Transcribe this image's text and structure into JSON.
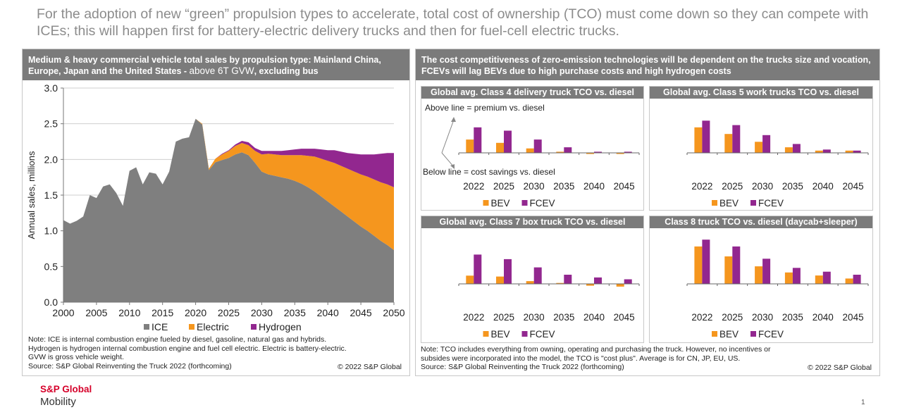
{
  "headline": "For the adoption of new “green” propulsion types to accelerate, total cost of ownership (TCO) must come down so they can compete with ICEs; this will happen first for battery-electric delivery trucks and then for fuel-cell electric trucks.",
  "left_panel": {
    "title_bold": "Medium & heavy commercial vehicle total sales by propulsion type: Mainland China, Europe, Japan and the United States - ",
    "title_light": "above 6T GVW",
    "title_tail": ", excluding bus",
    "note": [
      "Note: ICE is internal combustion engine fueled by diesel, gasoline, natural gas and hybrids.",
      "Hydrogen is hydrogen internal combustion engine and fuel cell electric. Electric is battery-electric.",
      "GVW is gross vehicle weight.",
      "Source: S&P Global Reinventing the Truck 2022 (forthcoming)"
    ],
    "copyright": "© 2022 S&P Global"
  },
  "right_panel": {
    "title": "The cost competitiveness of zero-emission technologies will be dependent on the trucks size and vocation, FCEVs will lag BEVs due to high purchase costs and high hydrogen costs",
    "note": [
      "Note: TCO includes everything from owning, operating and purchasing the truck. However, no incentives or",
      "subsides were incorporated into the model, the TCO is \"cost plus\". Average is for CN, JP, EU, US.",
      "Source: S&P Global Reinventing the Truck 2022 (forthcoming)"
    ],
    "copyright": "© 2022 S&P Global",
    "annotations": {
      "above": "Above line = premium vs. diesel",
      "below": "Below line = cost savings vs. diesel"
    }
  },
  "chart_data": [
    {
      "type": "area",
      "stacked": true,
      "title": "Medium & heavy commercial vehicle total sales by propulsion type",
      "ylabel": "Annual sales, millions",
      "xlabel": "",
      "xlim": [
        2000,
        2050
      ],
      "ylim": [
        0,
        3.0
      ],
      "yticks": [
        "0.0",
        "0.5",
        "1.0",
        "1.5",
        "2.0",
        "2.5",
        "3.0"
      ],
      "xticks": [
        "2000",
        "2005",
        "2010",
        "2015",
        "2020",
        "2025",
        "2030",
        "2035",
        "2040",
        "2045",
        "2050"
      ],
      "grid": true,
      "legend": "bottom",
      "colors": {
        "ICE": "#7f7f7f",
        "Electric": "#f5961e",
        "Hydrogen": "#92278f"
      },
      "x": [
        2000,
        2001,
        2002,
        2003,
        2004,
        2005,
        2006,
        2007,
        2008,
        2009,
        2010,
        2011,
        2012,
        2013,
        2014,
        2015,
        2016,
        2017,
        2018,
        2019,
        2020,
        2021,
        2022,
        2023,
        2024,
        2025,
        2026,
        2027,
        2028,
        2029,
        2030,
        2031,
        2032,
        2033,
        2034,
        2035,
        2036,
        2037,
        2038,
        2039,
        2040,
        2041,
        2042,
        2043,
        2044,
        2045,
        2046,
        2047,
        2048,
        2049,
        2050
      ],
      "series": [
        {
          "name": "ICE",
          "values": [
            1.15,
            1.1,
            1.14,
            1.2,
            1.5,
            1.46,
            1.62,
            1.65,
            1.53,
            1.35,
            1.84,
            1.89,
            1.65,
            1.82,
            1.8,
            1.65,
            1.83,
            2.25,
            2.29,
            2.31,
            2.57,
            2.49,
            1.85,
            1.96,
            1.99,
            2.02,
            2.07,
            2.1,
            2.06,
            1.95,
            1.83,
            1.79,
            1.77,
            1.75,
            1.73,
            1.7,
            1.66,
            1.61,
            1.55,
            1.48,
            1.41,
            1.34,
            1.27,
            1.2,
            1.13,
            1.06,
            1.0,
            0.93,
            0.86,
            0.8,
            0.73
          ]
        },
        {
          "name": "Electric",
          "values": [
            0,
            0,
            0,
            0,
            0,
            0,
            0,
            0,
            0,
            0,
            0,
            0,
            0,
            0,
            0,
            0,
            0,
            0,
            0,
            0,
            0.0,
            0.01,
            0.02,
            0.05,
            0.08,
            0.1,
            0.12,
            0.13,
            0.14,
            0.17,
            0.24,
            0.29,
            0.3,
            0.31,
            0.33,
            0.36,
            0.4,
            0.44,
            0.49,
            0.53,
            0.57,
            0.61,
            0.64,
            0.67,
            0.7,
            0.73,
            0.76,
            0.79,
            0.82,
            0.85,
            0.88
          ]
        },
        {
          "name": "Hydrogen",
          "values": [
            0,
            0,
            0,
            0,
            0,
            0,
            0,
            0,
            0,
            0,
            0,
            0,
            0,
            0,
            0,
            0,
            0,
            0,
            0,
            0,
            0,
            0,
            0,
            0,
            0.01,
            0.01,
            0.02,
            0.03,
            0.04,
            0.04,
            0.05,
            0.04,
            0.05,
            0.06,
            0.07,
            0.08,
            0.09,
            0.1,
            0.11,
            0.13,
            0.15,
            0.18,
            0.2,
            0.22,
            0.25,
            0.28,
            0.31,
            0.35,
            0.4,
            0.44,
            0.48
          ]
        }
      ]
    },
    {
      "type": "bar",
      "title": "Global avg. Class 4 delivery truck TCO vs. diesel",
      "categories": [
        "2022",
        "2025",
        "2030",
        "2035",
        "2040",
        "2045"
      ],
      "ylim": [
        -1,
        4
      ],
      "series": [
        {
          "name": "BEV",
          "values": [
            1.2,
            0.9,
            0.4,
            0.1,
            -0.1,
            -0.1
          ]
        },
        {
          "name": "FCEV",
          "values": [
            2.3,
            2.0,
            1.2,
            0.5,
            0.1,
            0.1
          ]
        }
      ]
    },
    {
      "type": "bar",
      "title": "Global avg. Class 5 work trucks TCO vs. diesel",
      "categories": [
        "2022",
        "2025",
        "2030",
        "2035",
        "2040",
        "2045"
      ],
      "ylim": [
        -1,
        4
      ],
      "series": [
        {
          "name": "BEV",
          "values": [
            2.3,
            1.7,
            1.0,
            0.5,
            0.2,
            0.2
          ]
        },
        {
          "name": "FCEV",
          "values": [
            2.9,
            2.5,
            1.6,
            0.8,
            0.3,
            0.2
          ]
        }
      ]
    },
    {
      "type": "bar",
      "title": "Global avg. Class 7 box truck TCO vs. diesel",
      "categories": [
        "2022",
        "2025",
        "2030",
        "2035",
        "2040",
        "2045"
      ],
      "ylim": [
        -1,
        5
      ],
      "series": [
        {
          "name": "BEV",
          "values": [
            0.9,
            0.8,
            0.3,
            0.1,
            -0.2,
            -0.3
          ]
        },
        {
          "name": "FCEV",
          "values": [
            3.2,
            2.7,
            1.8,
            1.0,
            0.7,
            0.5
          ]
        }
      ]
    },
    {
      "type": "bar",
      "title": "Class 8  truck TCO vs. diesel (daycab+sleeper)",
      "categories": [
        "2022",
        "2025",
        "2030",
        "2035",
        "2040",
        "2045"
      ],
      "ylim": [
        -1,
        6
      ],
      "series": [
        {
          "name": "BEV",
          "values": [
            4.9,
            3.6,
            2.3,
            1.5,
            1.1,
            0.7
          ]
        },
        {
          "name": "FCEV",
          "values": [
            5.8,
            4.9,
            3.3,
            2.1,
            1.6,
            1.2
          ]
        }
      ]
    }
  ],
  "brand": {
    "name": "S&P Global",
    "sub": "Mobility"
  },
  "page_number": "1"
}
